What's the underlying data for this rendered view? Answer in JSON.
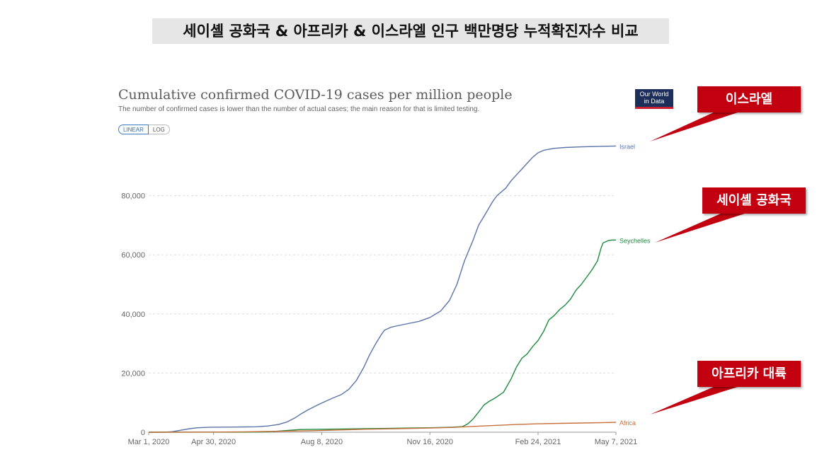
{
  "header": {
    "korean_title": "세이셸 공화국 & 아프리카 & 이스라엘 인구 백만명당 누적확진자수 비교"
  },
  "logo": {
    "line1": "Our World",
    "line2": "in Data"
  },
  "controls": {
    "linear_label": "LINEAR",
    "log_label": "LOG"
  },
  "callouts": {
    "israel": "이스라엘",
    "seychelles": "세이셸 공화국",
    "africa": "아프리카 대륙"
  },
  "colors": {
    "israel": "#5a74a8",
    "seychelles": "#1f8a3f",
    "africa": "#c8703d",
    "callout_bg": "#c3000f"
  },
  "chart_data": {
    "type": "line",
    "title": "Cumulative confirmed COVID-19 cases per million people",
    "subtitle": "The number of confirmed cases is lower than the number of actual cases; the main reason for that is limited testing.",
    "xlabel": "",
    "ylabel": "",
    "x_unit": "days since Mar 1, 2020",
    "xlim": [
      0,
      432
    ],
    "ylim": [
      0,
      100000
    ],
    "yticks": [
      0,
      20000,
      40000,
      60000,
      80000
    ],
    "ytick_labels": [
      "0",
      "20,000",
      "40,000",
      "60,000",
      "80,000"
    ],
    "xticks": [
      0,
      60,
      160,
      260,
      360,
      432
    ],
    "xtick_labels": [
      "Mar 1, 2020",
      "Apr 30, 2020",
      "Aug 8, 2020",
      "Nov 16, 2020",
      "Feb 24, 2021",
      "May 7, 2021"
    ],
    "series": [
      {
        "name": "Israel",
        "x": [
          0,
          15,
          22,
          30,
          38,
          45,
          55,
          60,
          80,
          90,
          100,
          110,
          120,
          128,
          135,
          140,
          147,
          155,
          162,
          170,
          178,
          185,
          192,
          199,
          204,
          210,
          215,
          218,
          224,
          230,
          238,
          250,
          260,
          270,
          278,
          285,
          292,
          300,
          305,
          310,
          318,
          322,
          330,
          335,
          340,
          345,
          350,
          355,
          360,
          365,
          370,
          375,
          385,
          400,
          420,
          432
        ],
        "values": [
          0,
          30,
          200,
          700,
          1200,
          1500,
          1650,
          1700,
          1750,
          1800,
          1850,
          2100,
          2600,
          3500,
          4800,
          6000,
          7500,
          9000,
          10200,
          11500,
          12700,
          14500,
          17500,
          22000,
          26000,
          30000,
          33000,
          34500,
          35500,
          36000,
          36600,
          37500,
          38800,
          41000,
          44500,
          50000,
          58000,
          65000,
          70000,
          73000,
          78000,
          80000,
          82500,
          85000,
          87000,
          89000,
          91000,
          93000,
          94500,
          95300,
          95700,
          96000,
          96300,
          96500,
          96700,
          96800
        ]
      },
      {
        "name": "Seychelles",
        "x": [
          0,
          80,
          100,
          110,
          140,
          160,
          180,
          200,
          220,
          240,
          260,
          270,
          280,
          290,
          295,
          300,
          305,
          310,
          315,
          320,
          328,
          335,
          340,
          345,
          350,
          355,
          360,
          365,
          370,
          375,
          380,
          385,
          390,
          395,
          400,
          405,
          410,
          415,
          418,
          420,
          423,
          425,
          428,
          432
        ],
        "values": [
          0,
          20,
          40,
          100,
          900,
          1000,
          1100,
          1200,
          1300,
          1400,
          1500,
          1600,
          1700,
          1900,
          2800,
          4500,
          6800,
          9200,
          10500,
          11500,
          13500,
          18000,
          22000,
          25000,
          26500,
          29000,
          31000,
          34000,
          38000,
          39500,
          41500,
          43000,
          45000,
          48000,
          50000,
          52500,
          55000,
          58000,
          62000,
          64000,
          64500,
          64800,
          65000,
          65000
        ]
      },
      {
        "name": "Africa",
        "x": [
          0,
          60,
          90,
          120,
          150,
          180,
          200,
          230,
          260,
          280,
          300,
          320,
          340,
          360,
          380,
          400,
          420,
          432
        ],
        "values": [
          0,
          50,
          150,
          300,
          500,
          800,
          1000,
          1200,
          1400,
          1600,
          1950,
          2300,
          2600,
          2850,
          3000,
          3100,
          3250,
          3350
        ]
      }
    ]
  }
}
